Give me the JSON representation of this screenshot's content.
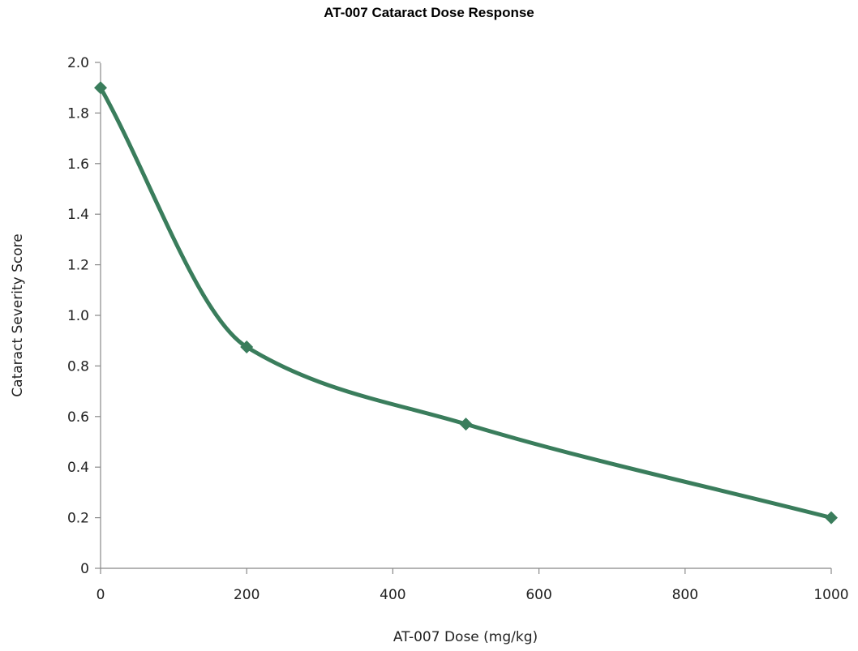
{
  "chart_data": {
    "type": "line",
    "title": "AT-007 Cataract Dose Response",
    "xlabel": "AT-007 Dose (mg/kg)",
    "ylabel": "Cataract Severity Score",
    "xlim": [
      0,
      1000
    ],
    "ylim": [
      0,
      2.0
    ],
    "x_ticks": [
      "0",
      "200",
      "400",
      "600",
      "800",
      "1000"
    ],
    "y_ticks": [
      "0",
      "0.2",
      "0.4",
      "0.6",
      "0.8",
      "1.0",
      "1.2",
      "1.4",
      "1.6",
      "1.8",
      "2.0"
    ],
    "grid": false,
    "smooth": true,
    "marker": "diamond",
    "series": [
      {
        "x": [
          0,
          200,
          500,
          1000
        ],
        "y": [
          1.9,
          0.875,
          0.57,
          0.2
        ],
        "color": "#3a7d5c"
      }
    ]
  }
}
